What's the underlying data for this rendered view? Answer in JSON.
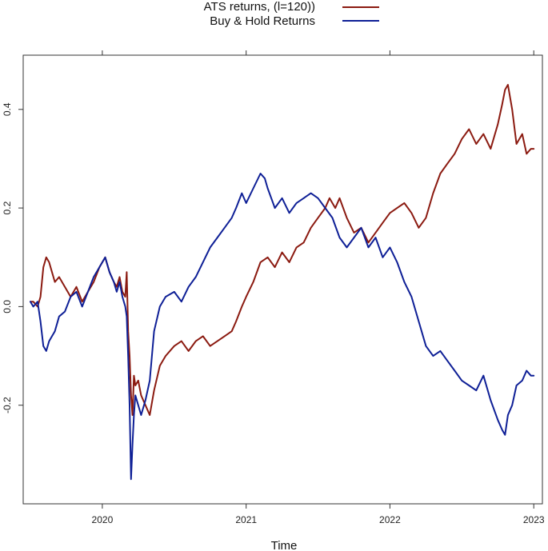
{
  "chart_data": {
    "type": "line",
    "title": "",
    "xlabel": "Time",
    "ylabel": "",
    "xlim": [
      2019.45,
      2023.06
    ],
    "ylim": [
      -0.4,
      0.51
    ],
    "x_ticks": [
      2020,
      2021,
      2022,
      2023
    ],
    "x_tick_labels": [
      "2020",
      "2021",
      "2022",
      "2023"
    ],
    "y_ticks": [
      -0.2,
      0.0,
      0.2,
      0.4
    ],
    "y_tick_labels": [
      "-0.2",
      "0.0",
      "0.2",
      "0.4"
    ],
    "grid": false,
    "legend": {
      "position": "top-center",
      "entries": [
        "ATS returns, (l=120))",
        "Buy & Hold Returns"
      ]
    },
    "series": [
      {
        "name": "ATS returns, (l=120))",
        "color": "#8b1a10",
        "x": [
          2019.5,
          2019.52,
          2019.55,
          2019.57,
          2019.59,
          2019.61,
          2019.63,
          2019.65,
          2019.67,
          2019.7,
          2019.74,
          2019.78,
          2019.82,
          2019.86,
          2019.9,
          2019.94,
          2019.98,
          2020.02,
          2020.05,
          2020.08,
          2020.1,
          2020.12,
          2020.14,
          2020.16,
          2020.17,
          2020.18,
          2020.19,
          2020.2,
          2020.21,
          2020.22,
          2020.23,
          2020.25,
          2020.27,
          2020.3,
          2020.33,
          2020.36,
          2020.4,
          2020.44,
          2020.5,
          2020.55,
          2020.6,
          2020.65,
          2020.7,
          2020.75,
          2020.8,
          2020.85,
          2020.9,
          2020.93,
          2020.97,
          2021.0,
          2021.05,
          2021.1,
          2021.15,
          2021.2,
          2021.25,
          2021.3,
          2021.35,
          2021.4,
          2021.45,
          2021.5,
          2021.55,
          2021.58,
          2021.62,
          2021.65,
          2021.7,
          2021.75,
          2021.8,
          2021.85,
          2021.9,
          2021.95,
          2022.0,
          2022.05,
          2022.1,
          2022.15,
          2022.2,
          2022.25,
          2022.3,
          2022.35,
          2022.4,
          2022.45,
          2022.5,
          2022.55,
          2022.6,
          2022.65,
          2022.7,
          2022.75,
          2022.78,
          2022.8,
          2022.82,
          2022.85,
          2022.88,
          2022.92,
          2022.95,
          2022.98,
          2023.0
        ],
        "y": [
          0.01,
          0.01,
          0.0,
          0.02,
          0.08,
          0.1,
          0.09,
          0.07,
          0.05,
          0.06,
          0.04,
          0.02,
          0.04,
          0.01,
          0.03,
          0.05,
          0.08,
          0.1,
          0.07,
          0.05,
          0.04,
          0.06,
          0.03,
          0.02,
          0.07,
          -0.05,
          -0.1,
          -0.18,
          -0.22,
          -0.14,
          -0.16,
          -0.15,
          -0.18,
          -0.2,
          -0.22,
          -0.17,
          -0.12,
          -0.1,
          -0.08,
          -0.07,
          -0.09,
          -0.07,
          -0.06,
          -0.08,
          -0.07,
          -0.06,
          -0.05,
          -0.03,
          0.0,
          0.02,
          0.05,
          0.09,
          0.1,
          0.08,
          0.11,
          0.09,
          0.12,
          0.13,
          0.16,
          0.18,
          0.2,
          0.22,
          0.2,
          0.22,
          0.18,
          0.15,
          0.16,
          0.13,
          0.15,
          0.17,
          0.19,
          0.2,
          0.21,
          0.19,
          0.16,
          0.18,
          0.23,
          0.27,
          0.29,
          0.31,
          0.34,
          0.36,
          0.33,
          0.35,
          0.32,
          0.37,
          0.41,
          0.44,
          0.45,
          0.4,
          0.33,
          0.35,
          0.31,
          0.32,
          0.32
        ]
      },
      {
        "name": "Buy & Hold Returns",
        "color": "#0e1f96",
        "x": [
          2019.5,
          2019.52,
          2019.55,
          2019.57,
          2019.59,
          2019.61,
          2019.63,
          2019.65,
          2019.67,
          2019.7,
          2019.74,
          2019.78,
          2019.82,
          2019.86,
          2019.9,
          2019.94,
          2019.98,
          2020.02,
          2020.05,
          2020.08,
          2020.1,
          2020.12,
          2020.14,
          2020.16,
          2020.17,
          2020.18,
          2020.19,
          2020.2,
          2020.21,
          2020.22,
          2020.23,
          2020.25,
          2020.27,
          2020.3,
          2020.33,
          2020.36,
          2020.4,
          2020.44,
          2020.5,
          2020.55,
          2020.6,
          2020.65,
          2020.7,
          2020.75,
          2020.8,
          2020.85,
          2020.9,
          2020.93,
          2020.97,
          2021.0,
          2021.05,
          2021.1,
          2021.13,
          2021.15,
          2021.2,
          2021.25,
          2021.3,
          2021.35,
          2021.4,
          2021.45,
          2021.5,
          2021.55,
          2021.6,
          2021.65,
          2021.7,
          2021.75,
          2021.8,
          2021.85,
          2021.9,
          2021.95,
          2022.0,
          2022.05,
          2022.1,
          2022.15,
          2022.2,
          2022.25,
          2022.3,
          2022.35,
          2022.4,
          2022.45,
          2022.5,
          2022.55,
          2022.6,
          2022.65,
          2022.7,
          2022.75,
          2022.78,
          2022.8,
          2022.82,
          2022.85,
          2022.88,
          2022.92,
          2022.95,
          2022.98,
          2023.0
        ],
        "y": [
          0.01,
          0.0,
          0.01,
          -0.03,
          -0.08,
          -0.09,
          -0.07,
          -0.06,
          -0.05,
          -0.02,
          -0.01,
          0.02,
          0.03,
          0.0,
          0.03,
          0.06,
          0.08,
          0.1,
          0.07,
          0.05,
          0.03,
          0.05,
          0.02,
          0.0,
          -0.02,
          -0.1,
          -0.2,
          -0.35,
          -0.28,
          -0.22,
          -0.18,
          -0.2,
          -0.22,
          -0.19,
          -0.15,
          -0.05,
          0.0,
          0.02,
          0.03,
          0.01,
          0.04,
          0.06,
          0.09,
          0.12,
          0.14,
          0.16,
          0.18,
          0.2,
          0.23,
          0.21,
          0.24,
          0.27,
          0.26,
          0.24,
          0.2,
          0.22,
          0.19,
          0.21,
          0.22,
          0.23,
          0.22,
          0.2,
          0.18,
          0.14,
          0.12,
          0.14,
          0.16,
          0.12,
          0.14,
          0.1,
          0.12,
          0.09,
          0.05,
          0.02,
          -0.03,
          -0.08,
          -0.1,
          -0.09,
          -0.11,
          -0.13,
          -0.15,
          -0.16,
          -0.17,
          -0.14,
          -0.19,
          -0.23,
          -0.25,
          -0.26,
          -0.22,
          -0.2,
          -0.16,
          -0.15,
          -0.13,
          -0.14,
          -0.14
        ]
      }
    ]
  }
}
